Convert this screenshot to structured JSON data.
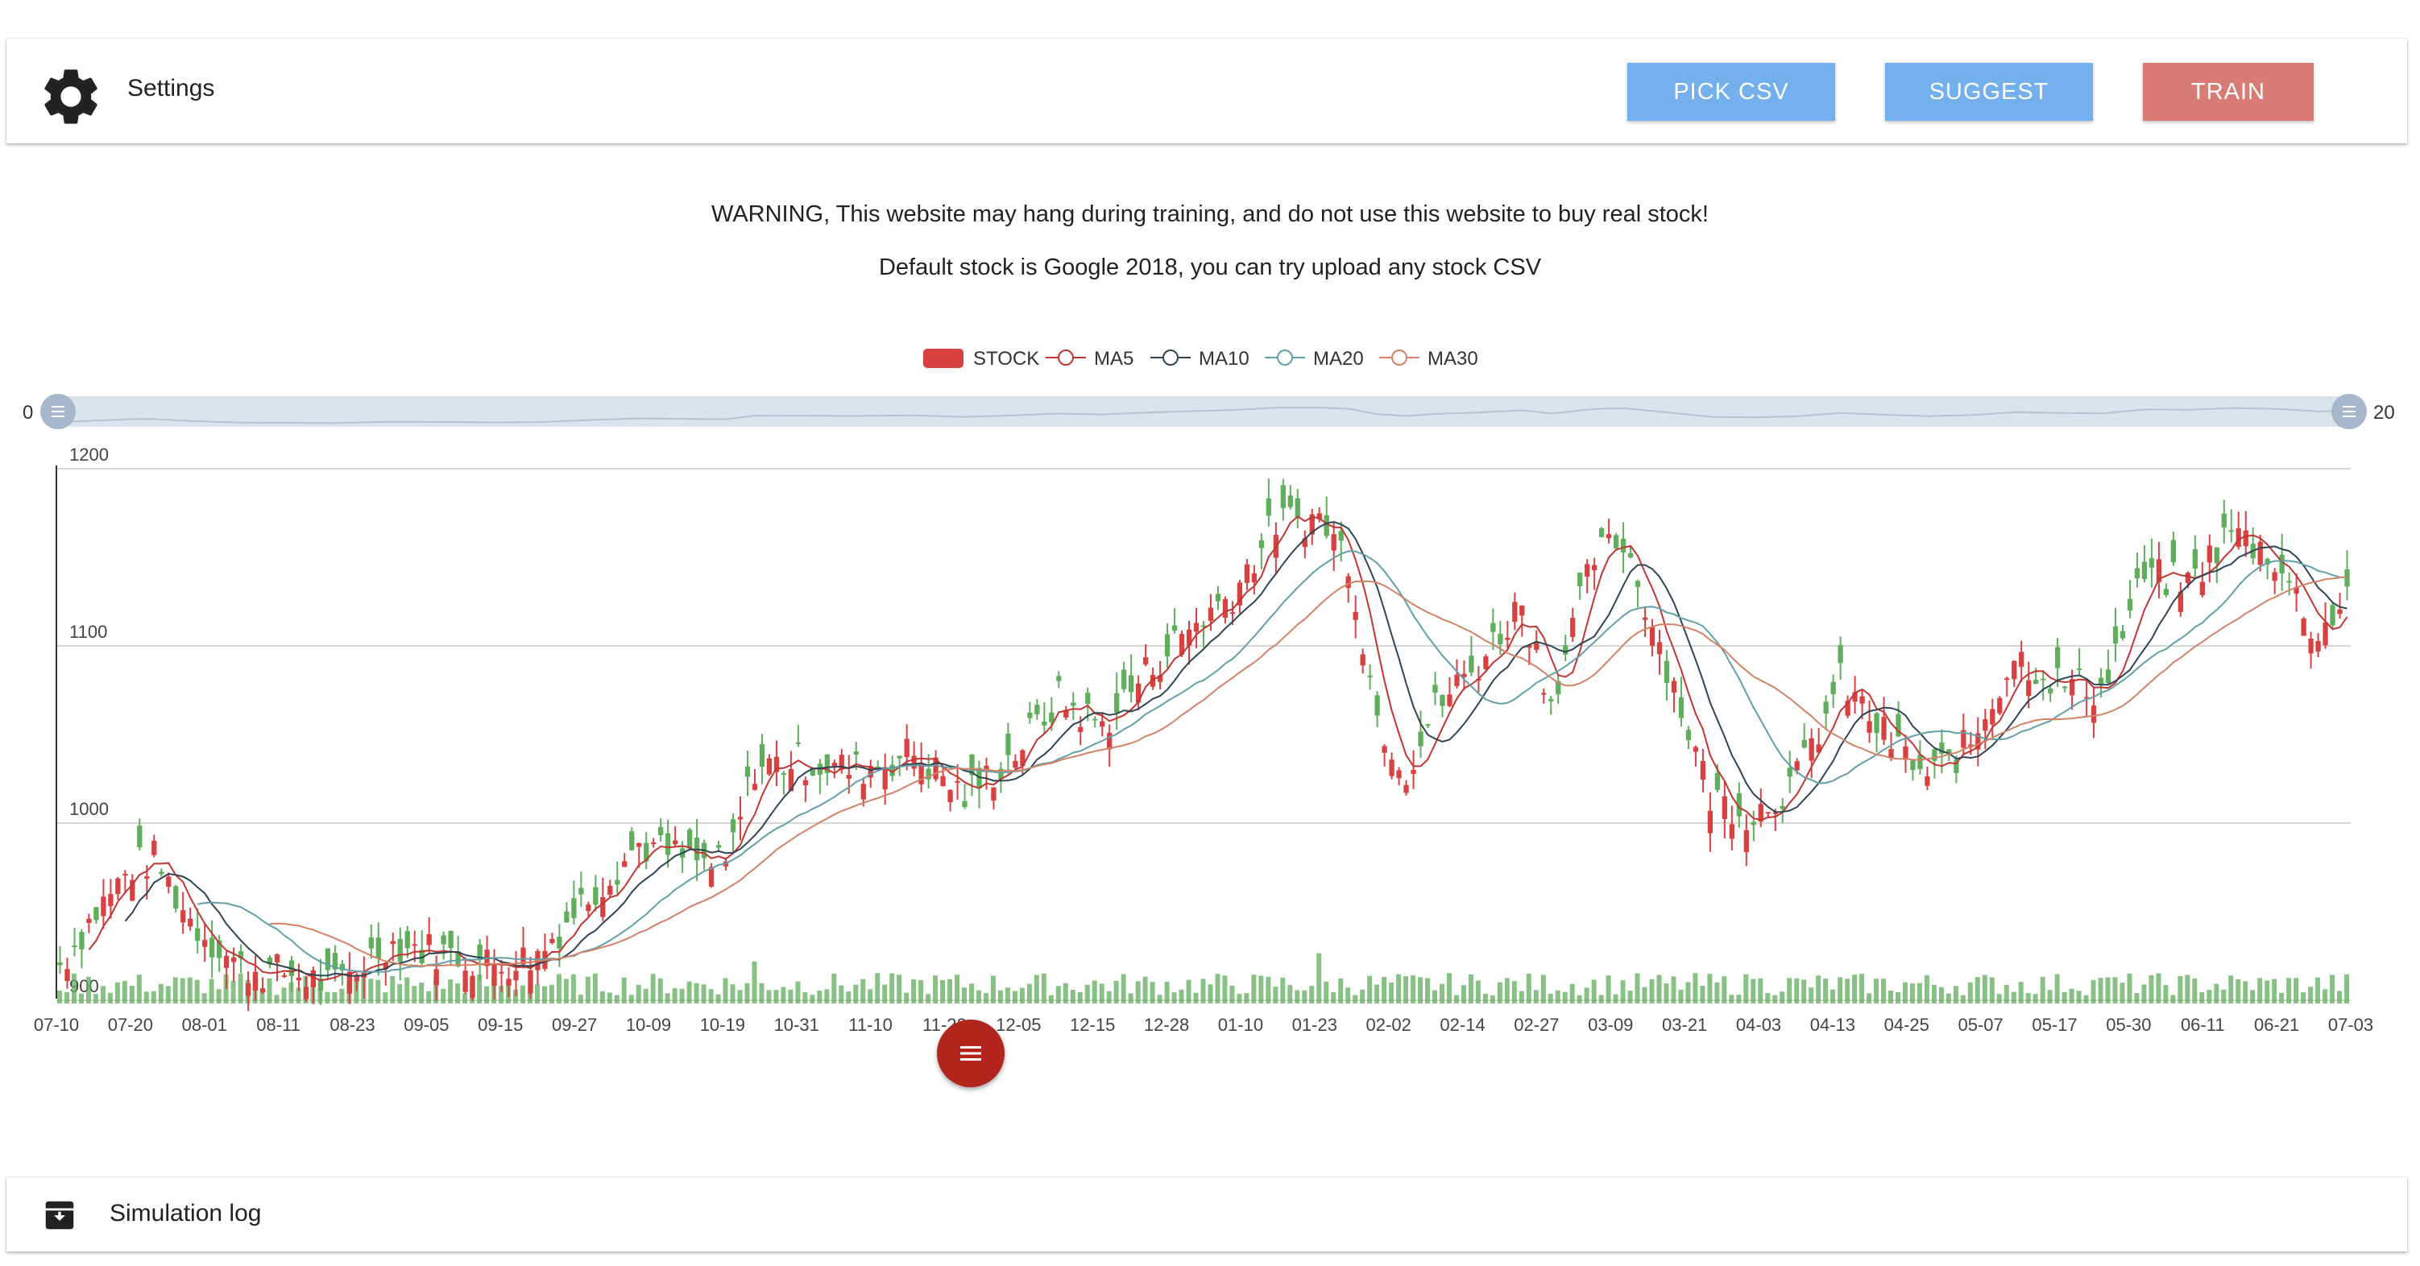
{
  "settings": {
    "title": "Settings",
    "pick_csv_label": "PICK CSV",
    "suggest_label": "SUGGEST",
    "train_label": "TRAIN",
    "gear_icon": "gear-icon",
    "colors": {
      "pick": "#74b0ed",
      "suggest": "#74b0ed",
      "train": "#d97a74"
    }
  },
  "warnings": {
    "line1": "WARNING, This website may hang during training, and do not use this website to buy real stock!",
    "line2": "Default stock is Google 2018, you can try upload any stock CSV"
  },
  "chart_data": {
    "type": "candlestick",
    "legend": [
      "STOCK",
      "MA5",
      "MA10",
      "MA20",
      "MA30"
    ],
    "legend_placement": "top-center",
    "series_colors": {
      "up": "#d94141",
      "down": "#5fae5b",
      "MA5": "#c23531",
      "MA10": "#2f4554",
      "MA20": "#61a0a8",
      "MA30": "#d48265",
      "volume": "#5fae5b"
    },
    "y_ticks": [
      1200,
      1100,
      1000,
      900
    ],
    "ylim": [
      880,
      1210
    ],
    "grid": true,
    "zoom_slider": {
      "start_label": "0",
      "end_label": "20"
    },
    "x_ticks": [
      "07-10",
      "07-20",
      "08-01",
      "08-11",
      "08-23",
      "09-05",
      "09-15",
      "09-27",
      "10-09",
      "10-19",
      "10-31",
      "11-10",
      "11-22",
      "12-05",
      "12-15",
      "12-28",
      "01-10",
      "01-23",
      "02-02",
      "02-14",
      "02-27",
      "03-09",
      "03-21",
      "04-03",
      "04-13",
      "04-25",
      "05-07",
      "05-17",
      "05-30",
      "06-11",
      "06-21",
      "07-03"
    ],
    "closing_trend": [
      {
        "t": 0,
        "v": 920
      },
      {
        "t": 5,
        "v": 950
      },
      {
        "t": 10,
        "v": 975
      },
      {
        "t": 13,
        "v": 980
      },
      {
        "t": 18,
        "v": 945
      },
      {
        "t": 25,
        "v": 918
      },
      {
        "t": 32,
        "v": 915
      },
      {
        "t": 38,
        "v": 908
      },
      {
        "t": 45,
        "v": 932
      },
      {
        "t": 52,
        "v": 928
      },
      {
        "t": 60,
        "v": 920
      },
      {
        "t": 66,
        "v": 925
      },
      {
        "t": 72,
        "v": 955
      },
      {
        "t": 80,
        "v": 988
      },
      {
        "t": 88,
        "v": 978
      },
      {
        "t": 92,
        "v": 975
      },
      {
        "t": 96,
        "v": 1032
      },
      {
        "t": 102,
        "v": 1035
      },
      {
        "t": 110,
        "v": 1030
      },
      {
        "t": 118,
        "v": 1040
      },
      {
        "t": 125,
        "v": 1015
      },
      {
        "t": 132,
        "v": 1040
      },
      {
        "t": 138,
        "v": 1070
      },
      {
        "t": 144,
        "v": 1055
      },
      {
        "t": 150,
        "v": 1085
      },
      {
        "t": 156,
        "v": 1110
      },
      {
        "t": 162,
        "v": 1130
      },
      {
        "t": 168,
        "v": 1170
      },
      {
        "t": 174,
        "v": 1172
      },
      {
        "t": 178,
        "v": 1150
      },
      {
        "t": 182,
        "v": 1060
      },
      {
        "t": 186,
        "v": 1030
      },
      {
        "t": 190,
        "v": 1065
      },
      {
        "t": 196,
        "v": 1090
      },
      {
        "t": 202,
        "v": 1125
      },
      {
        "t": 206,
        "v": 1070
      },
      {
        "t": 212,
        "v": 1150
      },
      {
        "t": 216,
        "v": 1160
      },
      {
        "t": 222,
        "v": 1090
      },
      {
        "t": 228,
        "v": 1015
      },
      {
        "t": 234,
        "v": 1005
      },
      {
        "t": 240,
        "v": 1025
      },
      {
        "t": 246,
        "v": 1080
      },
      {
        "t": 252,
        "v": 1050
      },
      {
        "t": 258,
        "v": 1025
      },
      {
        "t": 264,
        "v": 1045
      },
      {
        "t": 270,
        "v": 1095
      },
      {
        "t": 276,
        "v": 1080
      },
      {
        "t": 282,
        "v": 1075
      },
      {
        "t": 288,
        "v": 1140
      },
      {
        "t": 294,
        "v": 1135
      },
      {
        "t": 300,
        "v": 1165
      },
      {
        "t": 306,
        "v": 1150
      },
      {
        "t": 312,
        "v": 1105
      },
      {
        "t": 316,
        "v": 1130
      }
    ]
  },
  "fab": {
    "icon": "menu-icon"
  },
  "log": {
    "title": "Simulation log",
    "icon": "archive-icon"
  }
}
